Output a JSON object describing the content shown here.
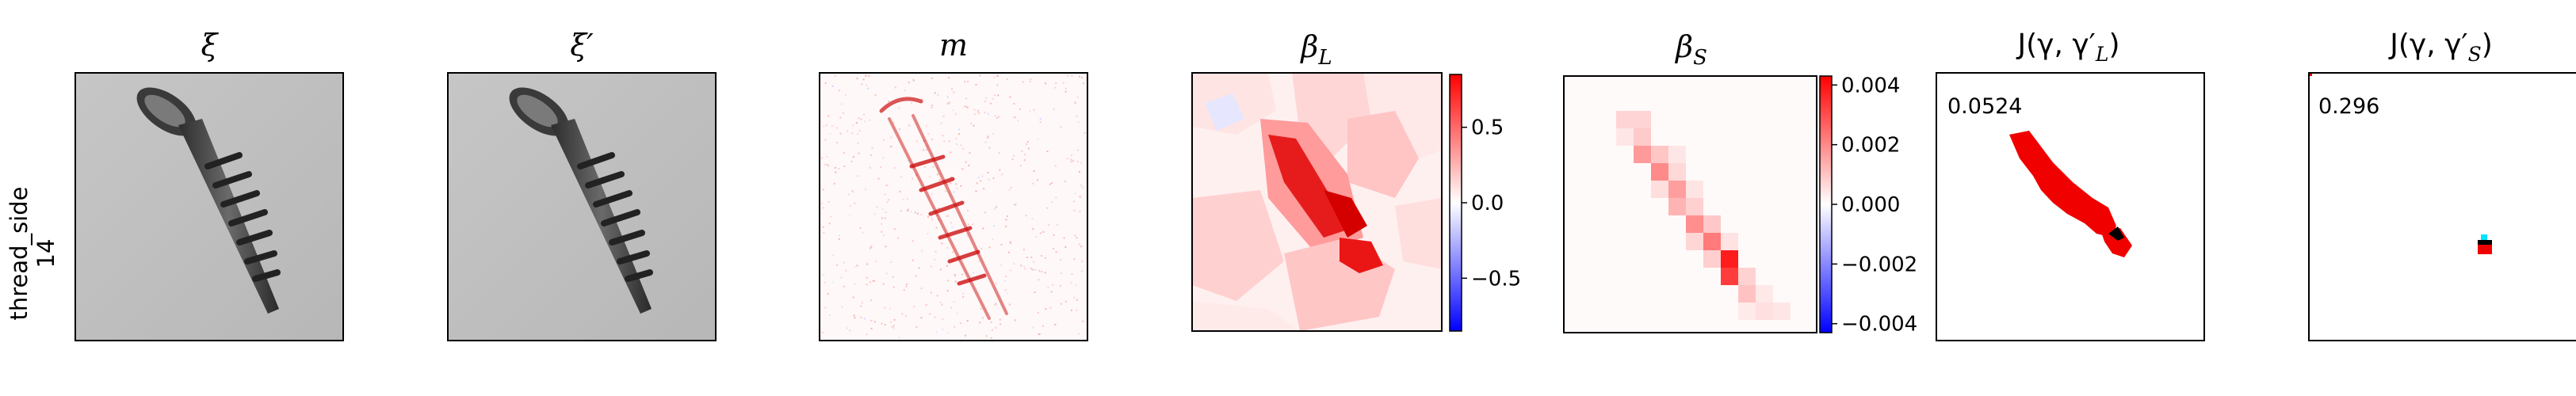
{
  "figure": {
    "row_label": [
      "thread_side",
      "14"
    ],
    "panels": [
      {
        "id": "xi",
        "title": "ξ",
        "kind": "photo",
        "tint": "#bdbdbd"
      },
      {
        "id": "xi_prime",
        "title": "ξ′",
        "kind": "photo",
        "tint": "#bdbdbd"
      },
      {
        "id": "m",
        "title": "m",
        "kind": "mask"
      },
      {
        "id": "beta_l",
        "title": "β",
        "title_sub": "L",
        "kind": "heatmap"
      },
      {
        "id": "beta_s",
        "title": "β",
        "title_sub": "S",
        "kind": "heatmap"
      },
      {
        "id": "j_l",
        "title": "J(γ, γ′",
        "title_sub": "L",
        "title_end": ")",
        "score": "0.0524",
        "kind": "segmentation"
      },
      {
        "id": "j_s",
        "title": "J(γ, γ′",
        "title_sub": "S",
        "title_end": ")",
        "score": "0.296",
        "kind": "segmentation"
      }
    ],
    "colorbars": [
      {
        "for": "beta_l",
        "ticks": [
          "0.5",
          "0.0",
          "−0.5"
        ],
        "tick_values": [
          0.5,
          0.0,
          -0.5
        ],
        "range": [
          -0.85,
          0.85
        ]
      },
      {
        "for": "beta_s",
        "ticks": [
          "0.004",
          "0.002",
          "0.000",
          "−0.002",
          "−0.004"
        ],
        "tick_values": [
          0.004,
          0.002,
          0.0,
          -0.002,
          -0.004
        ],
        "range": [
          -0.0043,
          0.0043
        ]
      }
    ],
    "colors": {
      "positive": "#ff0000",
      "negative": "#0000ff",
      "neutral": "#ffffff",
      "overlap": "#000000",
      "cyan": "#00e5ff"
    }
  }
}
